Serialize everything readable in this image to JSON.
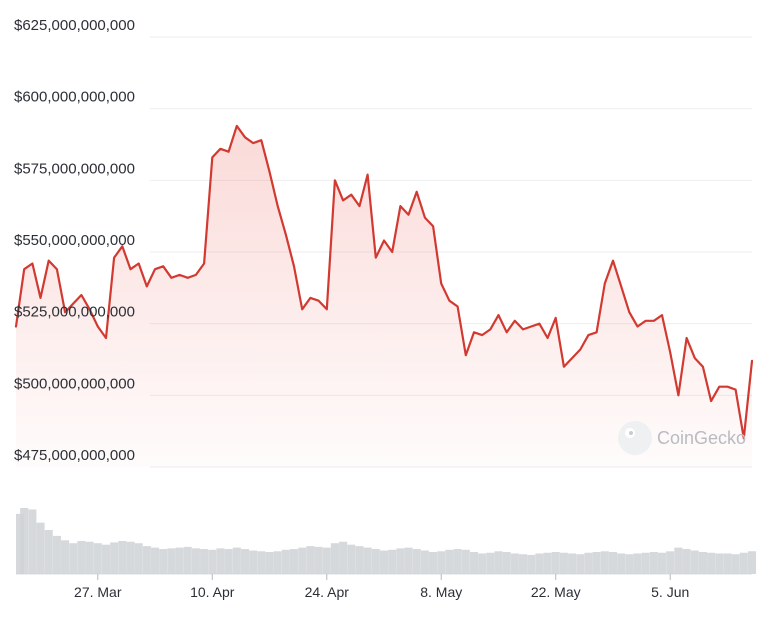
{
  "chart_data": {
    "type": "line",
    "title": "",
    "xlabel": "",
    "ylabel": "",
    "line_color": "#d23a31",
    "fill_color": "#e8584f",
    "volume_color": "#cfd2d6",
    "grid": true,
    "ylim": [
      475000000000,
      625000000000
    ],
    "y_ticks": [
      {
        "value": 625000000000,
        "label": "$625,000,000,000"
      },
      {
        "value": 600000000000,
        "label": "$600,000,000,000"
      },
      {
        "value": 575000000000,
        "label": "$575,000,000,000"
      },
      {
        "value": 550000000000,
        "label": "$550,000,000,000"
      },
      {
        "value": 525000000000,
        "label": "$525,000,000,000"
      },
      {
        "value": 500000000000,
        "label": "$500,000,000,000"
      },
      {
        "value": 475000000000,
        "label": "$475,000,000,000"
      }
    ],
    "xlim": [
      "2023-03-17",
      "2023-06-15"
    ],
    "x_ticks": [
      {
        "value": "2023-03-27",
        "label": "27. Mar"
      },
      {
        "value": "2023-04-10",
        "label": "10. Apr"
      },
      {
        "value": "2023-04-24",
        "label": "24. Apr"
      },
      {
        "value": "2023-05-08",
        "label": "8. May"
      },
      {
        "value": "2023-05-22",
        "label": "22. May"
      },
      {
        "value": "2023-06-05",
        "label": "5. Jun"
      }
    ],
    "series": [
      {
        "x": [
          "2023-03-17",
          "2023-03-18",
          "2023-03-19",
          "2023-03-20",
          "2023-03-21",
          "2023-03-22",
          "2023-03-23",
          "2023-03-24",
          "2023-03-25",
          "2023-03-26",
          "2023-03-27",
          "2023-03-28",
          "2023-03-29",
          "2023-03-30",
          "2023-03-31",
          "2023-04-01",
          "2023-04-02",
          "2023-04-03",
          "2023-04-04",
          "2023-04-05",
          "2023-04-06",
          "2023-04-07",
          "2023-04-08",
          "2023-04-09",
          "2023-04-10",
          "2023-04-11",
          "2023-04-12",
          "2023-04-13",
          "2023-04-14",
          "2023-04-15",
          "2023-04-16",
          "2023-04-17",
          "2023-04-18",
          "2023-04-19",
          "2023-04-20",
          "2023-04-21",
          "2023-04-22",
          "2023-04-23",
          "2023-04-24",
          "2023-04-25",
          "2023-04-26",
          "2023-04-27",
          "2023-04-28",
          "2023-04-29",
          "2023-04-30",
          "2023-05-01",
          "2023-05-02",
          "2023-05-03",
          "2023-05-04",
          "2023-05-05",
          "2023-05-06",
          "2023-05-07",
          "2023-05-08",
          "2023-05-09",
          "2023-05-10",
          "2023-05-11",
          "2023-05-12",
          "2023-05-13",
          "2023-05-14",
          "2023-05-15",
          "2023-05-16",
          "2023-05-17",
          "2023-05-18",
          "2023-05-19",
          "2023-05-20",
          "2023-05-21",
          "2023-05-22",
          "2023-05-23",
          "2023-05-24",
          "2023-05-25",
          "2023-05-26",
          "2023-05-27",
          "2023-05-28",
          "2023-05-29",
          "2023-05-30",
          "2023-05-31",
          "2023-06-01",
          "2023-06-02",
          "2023-06-03",
          "2023-06-04",
          "2023-06-05",
          "2023-06-06",
          "2023-06-07",
          "2023-06-08",
          "2023-06-09",
          "2023-06-10",
          "2023-06-11",
          "2023-06-12",
          "2023-06-13",
          "2023-06-14",
          "2023-06-15"
        ],
        "values": [
          524000000000,
          544000000000,
          546000000000,
          534000000000,
          547000000000,
          544000000000,
          529000000000,
          532000000000,
          535000000000,
          530000000000,
          524000000000,
          520000000000,
          548000000000,
          552000000000,
          544000000000,
          546000000000,
          538000000000,
          544000000000,
          545000000000,
          541000000000,
          542000000000,
          541000000000,
          542000000000,
          546000000000,
          583000000000,
          586000000000,
          585000000000,
          594000000000,
          590000000000,
          588000000000,
          589000000000,
          578000000000,
          566000000000,
          556000000000,
          545000000000,
          530000000000,
          534000000000,
          533000000000,
          530000000000,
          575000000000,
          568000000000,
          570000000000,
          566000000000,
          577000000000,
          548000000000,
          554000000000,
          550000000000,
          566000000000,
          563000000000,
          571000000000,
          562000000000,
          559000000000,
          539000000000,
          533000000000,
          531000000000,
          514000000000,
          522000000000,
          521000000000,
          523000000000,
          528000000000,
          522000000000,
          526000000000,
          523000000000,
          524000000000,
          525000000000,
          520000000000,
          527000000000,
          510000000000,
          513000000000,
          516000000000,
          521000000000,
          522000000000,
          539000000000,
          547000000000,
          538000000000,
          529000000000,
          524000000000,
          526000000000,
          526000000000,
          528000000000,
          515000000000,
          500000000000,
          520000000000,
          513000000000,
          510000000000,
          498000000000,
          503000000000,
          503000000000,
          502000000000,
          485000000000,
          512000000000
        ]
      }
    ],
    "volume": [
      82,
      90,
      88,
      70,
      60,
      52,
      46,
      42,
      45,
      44,
      42,
      40,
      43,
      45,
      44,
      42,
      38,
      36,
      34,
      35,
      36,
      37,
      35,
      34,
      33,
      35,
      34,
      36,
      34,
      32,
      31,
      30,
      31,
      33,
      34,
      36,
      38,
      37,
      36,
      42,
      44,
      40,
      38,
      36,
      34,
      32,
      33,
      35,
      36,
      34,
      32,
      30,
      31,
      33,
      34,
      33,
      30,
      28,
      29,
      31,
      30,
      28,
      27,
      26,
      28,
      29,
      30,
      29,
      28,
      27,
      29,
      30,
      31,
      30,
      28,
      27,
      28,
      29,
      30,
      29,
      31,
      36,
      34,
      32,
      30,
      29,
      28,
      28,
      27,
      29,
      31
    ]
  },
  "watermark": {
    "text": "CoinGecko"
  }
}
